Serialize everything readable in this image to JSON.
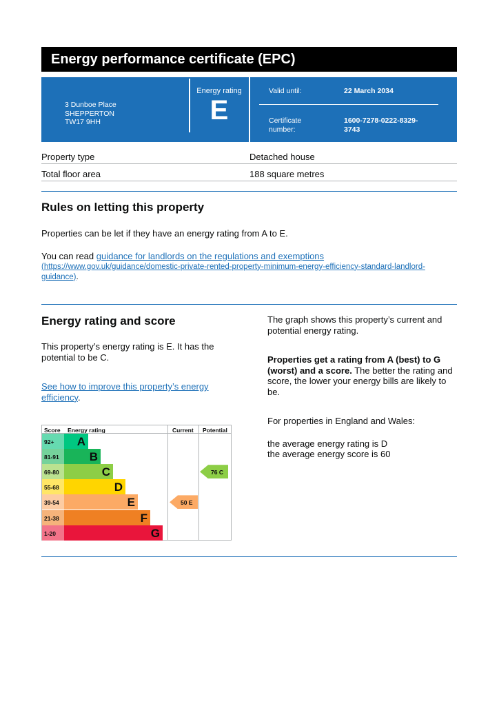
{
  "title": "Energy performance certificate (EPC)",
  "address": {
    "line1": "3 Dunboe Place",
    "line2": "SHEPPERTON",
    "line3": "TW17 9HH"
  },
  "rating": {
    "label": "Energy rating",
    "value": "E"
  },
  "valid": {
    "label": "Valid until:",
    "value": "22 March 2034"
  },
  "certificate": {
    "label1": "Certificate",
    "label2": "number:",
    "value1": "1600-7278-0222-8329-",
    "value2": "3743"
  },
  "property": [
    {
      "label": "Property type",
      "value": "Detached house"
    },
    {
      "label": "Total floor area",
      "value": "188 square metres"
    }
  ],
  "letting": {
    "heading": "Rules on letting this property",
    "p1": "Properties can be let if they have an energy rating from A to E.",
    "p2_prefix": "You can read ",
    "link": "guidance for landlords on the regulations and exemptions",
    "url": "(https://www.gov.uk/guidance/domestic-private-rented-property-minimum-energy-efficiency-standard-landlord-guidance)",
    "suffix": "."
  },
  "score": {
    "heading": "Energy rating and score",
    "p1": "This property’s energy rating is E. It has the potential to be C.",
    "link": "See how to improve this property’s energy efficiency",
    "suffix": ".",
    "right_p1": "The graph shows this property’s current and potential energy rating.",
    "right_bold": "Properties get a rating from A (best) to G (worst) and a score.",
    "right_p2": " The better the rating and score, the lower your energy bills are likely to be.",
    "right_p3": "For properties in England and Wales:",
    "avg1": "the average energy rating is D",
    "avg2": "the average energy score is 60"
  },
  "chart": {
    "headers": {
      "score": "Score",
      "rating": "Energy rating",
      "current": "Current",
      "potential": "Potential"
    },
    "bands": [
      {
        "range": "92+",
        "letter": "A",
        "color": "#00c781",
        "tint": "#66dab0"
      },
      {
        "range": "81-91",
        "letter": "B",
        "color": "#19b459",
        "tint": "#75d29b"
      },
      {
        "range": "69-80",
        "letter": "C",
        "color": "#8dce46",
        "tint": "#bbe290"
      },
      {
        "range": "55-68",
        "letter": "D",
        "color": "#ffd500",
        "tint": "#ffe666"
      },
      {
        "range": "39-54",
        "letter": "E",
        "color": "#fcaa65",
        "tint": "#fdcca3"
      },
      {
        "range": "21-38",
        "letter": "F",
        "color": "#ef8023",
        "tint": "#f5b37b"
      },
      {
        "range": "1-20",
        "letter": "G",
        "color": "#e9153b",
        "tint": "#f27389"
      }
    ],
    "current": {
      "label": "50 E",
      "band": 4,
      "color": "#fcaa65"
    },
    "potential": {
      "label": "76 C",
      "band": 2,
      "color": "#8dce46"
    }
  }
}
